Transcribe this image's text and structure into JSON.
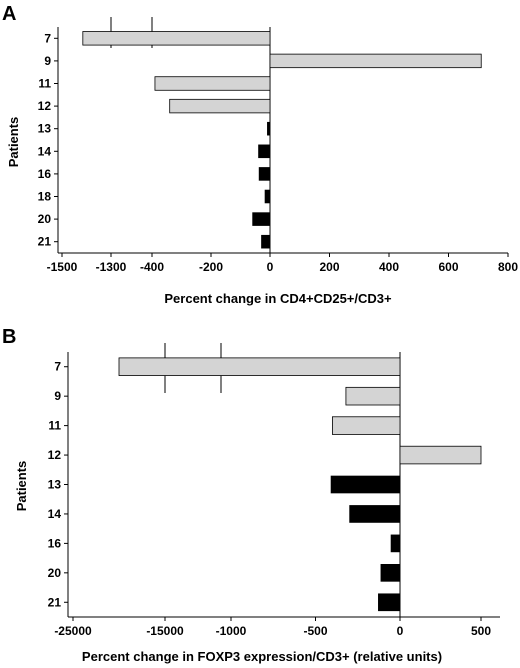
{
  "chart_data": [
    {
      "type": "bar",
      "orientation": "horizontal",
      "panel": "A",
      "ylabel": "Patients",
      "xlabel": "Percent change in CD4+CD25+/CD3+",
      "categories": [
        "7",
        "9",
        "11",
        "12",
        "13",
        "14",
        "16",
        "18",
        "20",
        "21"
      ],
      "values": [
        -1415,
        710,
        -390,
        -340,
        -10,
        -40,
        -38,
        -18,
        -60,
        -30
      ],
      "bar_colors": [
        "#d4d4d4",
        "#d4d4d4",
        "#d4d4d4",
        "#d4d4d4",
        "#000000",
        "#000000",
        "#000000",
        "#000000",
        "#000000",
        "#000000"
      ],
      "x_axis": {
        "broken": true,
        "break_between": [
          -1300,
          -400
        ],
        "tick_labels": [
          "-1500",
          "-1300",
          "-400",
          "-200",
          "0",
          "200",
          "400",
          "600",
          "800"
        ],
        "tick_values": [
          -1500,
          -1300,
          -400,
          -200,
          0,
          200,
          400,
          600,
          800
        ]
      },
      "grid": false
    },
    {
      "type": "bar",
      "orientation": "horizontal",
      "panel": "B",
      "ylabel": "Patients",
      "xlabel": "Percent change in FOXP3  expression/CD3+ (relative units)",
      "categories": [
        "7",
        "9",
        "11",
        "12",
        "13",
        "14",
        "16",
        "20",
        "21"
      ],
      "values": [
        -20000,
        -320,
        -400,
        500,
        -410,
        -300,
        -55,
        -115,
        -130
      ],
      "bar_colors": [
        "#d4d4d4",
        "#d4d4d4",
        "#d4d4d4",
        "#d4d4d4",
        "#000000",
        "#000000",
        "#000000",
        "#000000",
        "#000000"
      ],
      "x_axis": {
        "broken": true,
        "break_between": [
          -15000,
          -1100
        ],
        "tick_labels": [
          "-25000",
          "-15000",
          "-1000",
          "-500",
          "0",
          "500"
        ],
        "tick_values": [
          -25000,
          -15000,
          -1000,
          -500,
          0,
          500
        ]
      },
      "grid": false
    }
  ]
}
